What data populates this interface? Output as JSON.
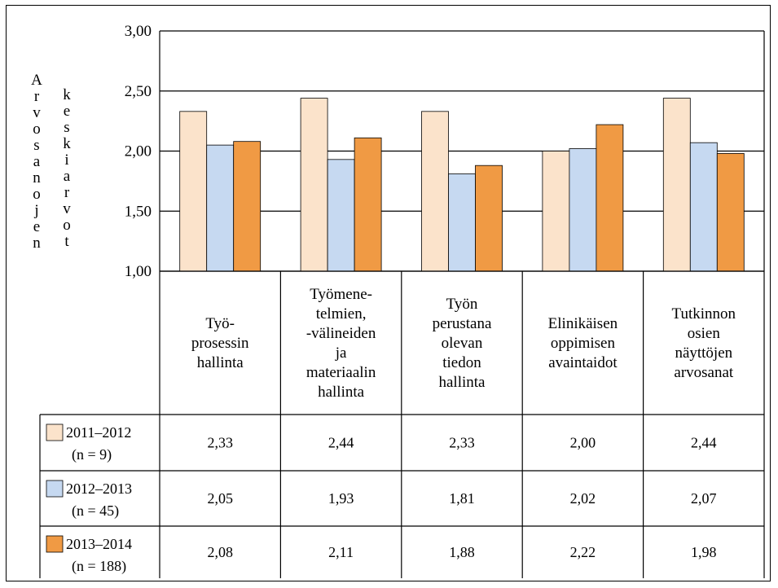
{
  "chart_data": {
    "type": "bar",
    "ylabel_words": [
      "Arvosanojen",
      "keskiarvot"
    ],
    "ylim": [
      1.0,
      3.0
    ],
    "yticks": [
      "1,00",
      "1,50",
      "2,00",
      "2,50",
      "3,00"
    ],
    "ytick_values": [
      1.0,
      1.5,
      2.0,
      2.5,
      3.0
    ],
    "grid": true,
    "legend_placement": "data-table-left",
    "categories": [
      [
        "Työ-",
        "prosessin",
        "hallinta"
      ],
      [
        "Työmene-",
        "telmien,",
        "-välineiden",
        "ja",
        "materiaalin",
        "hallinta"
      ],
      [
        "Työn",
        "perustana",
        "olevan",
        "tiedon",
        "hallinta"
      ],
      [
        "Elinikäisen",
        "oppimisen",
        "avaintaidot"
      ],
      [
        "Tutkinnon",
        "osien",
        "näyttöjen",
        "arvosanat"
      ]
    ],
    "series": [
      {
        "name": [
          "2011–2012",
          "(n = 9)"
        ],
        "color": "#fbe3cb",
        "values": [
          2.33,
          2.44,
          2.33,
          2.0,
          2.44
        ],
        "labels": [
          "2,33",
          "2,44",
          "2,33",
          "2,00",
          "2,44"
        ]
      },
      {
        "name": [
          "2012–2013",
          "(n = 45)"
        ],
        "color": "#c6d9f1",
        "values": [
          2.05,
          1.93,
          1.81,
          2.02,
          2.07
        ],
        "labels": [
          "2,05",
          "1,93",
          "1,81",
          "2,02",
          "2,07"
        ]
      },
      {
        "name": [
          "2013–2014",
          "(n = 188)"
        ],
        "color": "#f09a44",
        "values": [
          2.08,
          2.11,
          1.88,
          2.22,
          1.98
        ],
        "labels": [
          "2,08",
          "2,11",
          "1,88",
          "2,22",
          "1,98"
        ]
      }
    ]
  }
}
